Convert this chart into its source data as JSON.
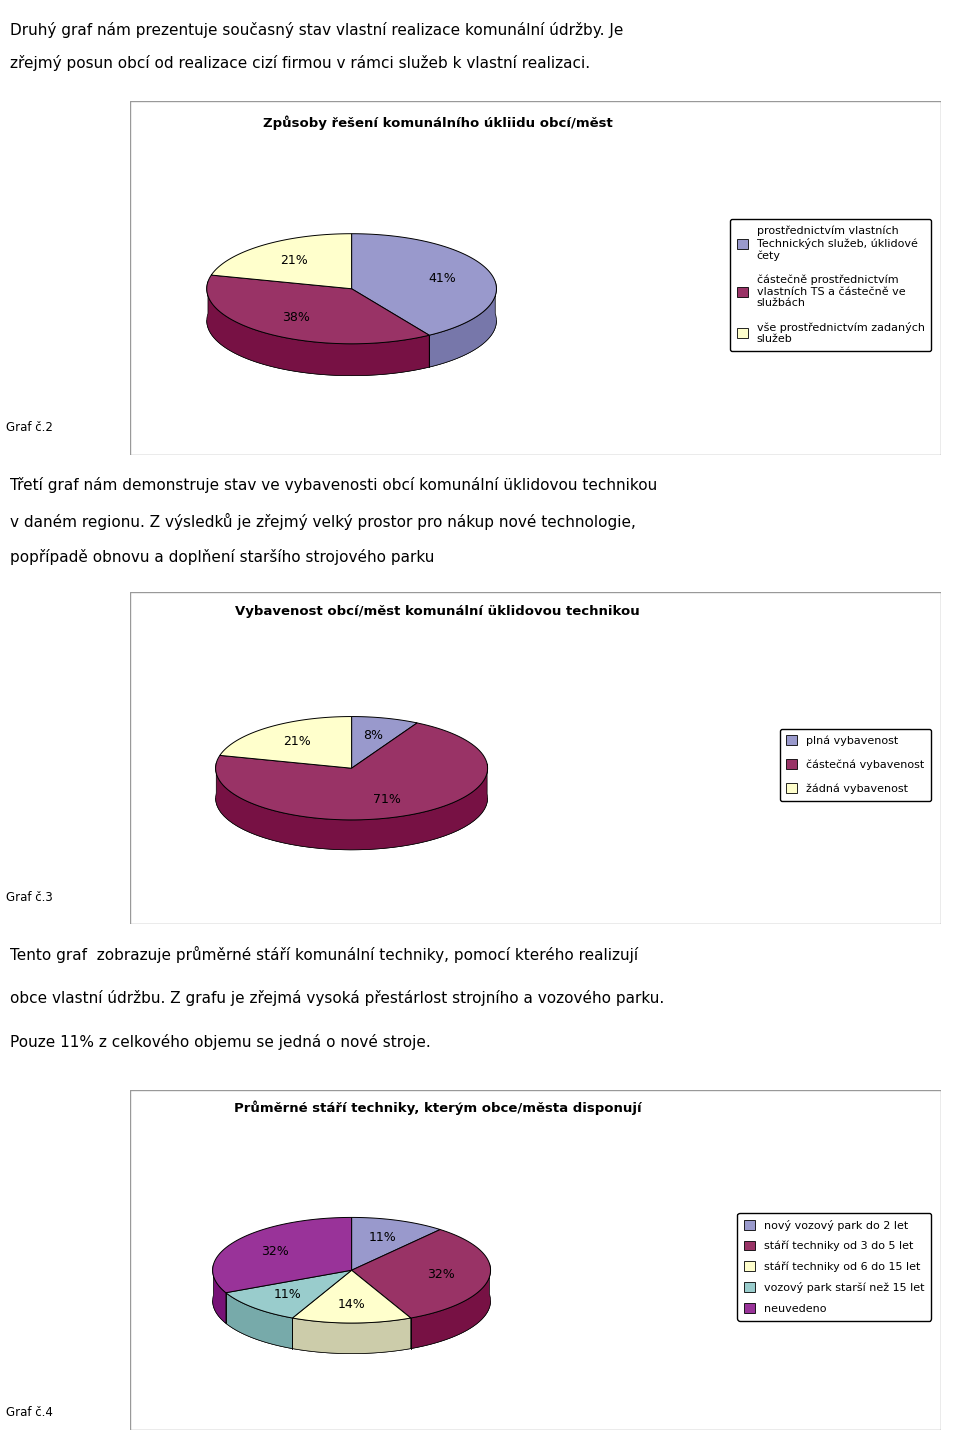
{
  "page_text1_lines": [
    "Druhý graf nám prezentuje současný stav vlastní realizace komunální údržby. Je",
    "zřejmý posun obcí od realizace cizí firmou v rámci služeb k vlastní realizaci."
  ],
  "page_text2_lines": [
    "Třetí graf nám demonstruje stav ve vybavenosti obcí komunální üklidovou technikou",
    "v daném regionu. Z výsledků je zřejmý velký prostor pro nákup nové technologie,",
    "popřípadě obnovu a doplňení staršího strojového parku"
  ],
  "page_text3_lines": [
    "Tento graf  zobrazuje průměrné stáří komunální techniky, pomocí kterého realizují",
    "obce vlastní údržbu. Z grafu je zřejmá vysoká přestárlost strojního a vozového parku.",
    "Pouze 11% z celkového objemu se jedná o nové stroje."
  ],
  "chart2_title": "Způsoby řešení komunálního úkliidu obcí/měst",
  "chart2_values": [
    41,
    38,
    21
  ],
  "chart2_colors": [
    "#9999CC",
    "#993366",
    "#FFFFCC"
  ],
  "chart2_dark_colors": [
    "#7777AA",
    "#771144",
    "#CCCCAA"
  ],
  "chart2_pct_labels": [
    "41%",
    "38%",
    "21%"
  ],
  "chart2_legend": [
    "prostřednictvím vlastních\nTechnických služeb, úklidové\nčety",
    "částečně prostřednictvím\nvlastních TS a částečně ve\nslužbách",
    "vše prostřednictvím zadaných\nslužeb"
  ],
  "chart2_legend_colors": [
    "#9999CC",
    "#993366",
    "#FFFFCC"
  ],
  "chart2_graf_label": "Graf č.2",
  "chart3_title": "Vybavenost obcí/měst komunální üklidovou technikou",
  "chart3_values": [
    8,
    71,
    21
  ],
  "chart3_colors": [
    "#9999CC",
    "#993366",
    "#FFFFCC"
  ],
  "chart3_dark_colors": [
    "#7777AA",
    "#771144",
    "#CCCCAA"
  ],
  "chart3_pct_labels": [
    "8%",
    "71%",
    "21%"
  ],
  "chart3_legend": [
    "plná vybavenost",
    "částečná vybavenost",
    "žádná vybavenost"
  ],
  "chart3_legend_colors": [
    "#9999CC",
    "#993366",
    "#FFFFCC"
  ],
  "chart3_graf_label": "Graf č.3",
  "chart4_title": "Průměrné stáří techniky, kterým obce/města disponují",
  "chart4_values": [
    11,
    32,
    14,
    11,
    32
  ],
  "chart4_colors": [
    "#9999CC",
    "#993366",
    "#FFFFCC",
    "#99CCCC",
    "#993399"
  ],
  "chart4_dark_colors": [
    "#7777AA",
    "#771144",
    "#CCCCAA",
    "#77AAAA",
    "#771177"
  ],
  "chart4_pct_labels": [
    "11%",
    "32%",
    "14%",
    "11%",
    "32%"
  ],
  "chart4_legend": [
    "nový vozový park do 2 let",
    "stáří techniky od 3 do 5 let",
    "stáří techniky od 6 do 15 let",
    "vozový park starší než 15 let",
    "neuvedeno"
  ],
  "chart4_legend_colors": [
    "#9999CC",
    "#993366",
    "#FFFFCC",
    "#99CCCC",
    "#993399"
  ],
  "chart4_graf_label": "Graf č.4"
}
